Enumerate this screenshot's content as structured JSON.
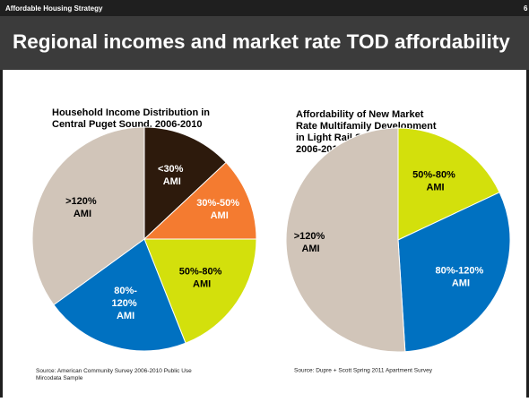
{
  "header": {
    "section": "Affordable Housing Strategy",
    "page": "6",
    "title": "Regional incomes and market rate TOD affordability"
  },
  "chart_data": [
    {
      "type": "pie",
      "title": "Household Income Distribution in Central Puget Sound, 2006-2010",
      "categories": [
        "<30% AMI",
        "30%-50% AMI",
        "50%-80% AMI",
        "80%-120% AMI",
        ">120% AMI"
      ],
      "values": [
        13,
        12,
        19,
        21,
        35
      ],
      "colors": [
        "#2d1a0c",
        "#f47b30",
        "#d3e00c",
        "#0071c1",
        "#d1c5b9"
      ],
      "label_colors": [
        "#ffffff",
        "#ffffff",
        "#000000",
        "#ffffff",
        "#000000"
      ],
      "source": "Source: American Community Survey 2006-2010 Public Use Mircodata Sample"
    },
    {
      "type": "pie",
      "title": "Affordability of New Market Rate Multifamily Development in Light Rail Station Areas, 2006-2011",
      "categories": [
        "50%-80% AMI",
        "80%-120% AMI",
        ">120% AMI"
      ],
      "values": [
        18,
        31,
        51
      ],
      "colors": [
        "#d3e00c",
        "#0071c1",
        "#d1c5b9"
      ],
      "label_colors": [
        "#000000",
        "#ffffff",
        "#000000"
      ],
      "source": "Source: Dupre + Scott Spring 2011 Apartment Survey"
    }
  ]
}
